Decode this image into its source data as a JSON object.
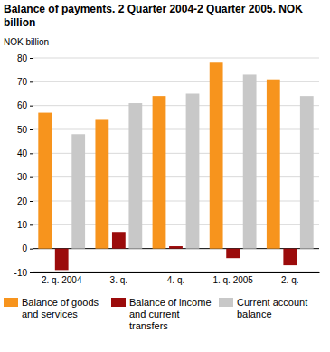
{
  "chart_data": {
    "type": "bar",
    "title": "Balance of payments. 2 Quarter 2004-2 Quarter 2005. NOK billion",
    "y_label": "NOK billion",
    "categories": [
      "2. q. 2004",
      "3. q.",
      "4. q.",
      "1. q. 2005",
      "2. q."
    ],
    "series": [
      {
        "name": "Balance of goods and services",
        "color": "#f7941d",
        "values": [
          57,
          54,
          64,
          78,
          71
        ]
      },
      {
        "name": "Balance of income and current transfers",
        "color": "#9b0b0b",
        "values": [
          -9,
          7,
          1,
          -4,
          -7
        ]
      },
      {
        "name": "Current account balance",
        "color": "#c8c8c8",
        "values": [
          48,
          61,
          65,
          73,
          64
        ]
      }
    ],
    "ylim": [
      -10,
      80
    ],
    "yticks": [
      -10,
      0,
      10,
      20,
      30,
      40,
      50,
      60,
      70,
      80
    ],
    "grid": true,
    "legend": "bottom"
  }
}
